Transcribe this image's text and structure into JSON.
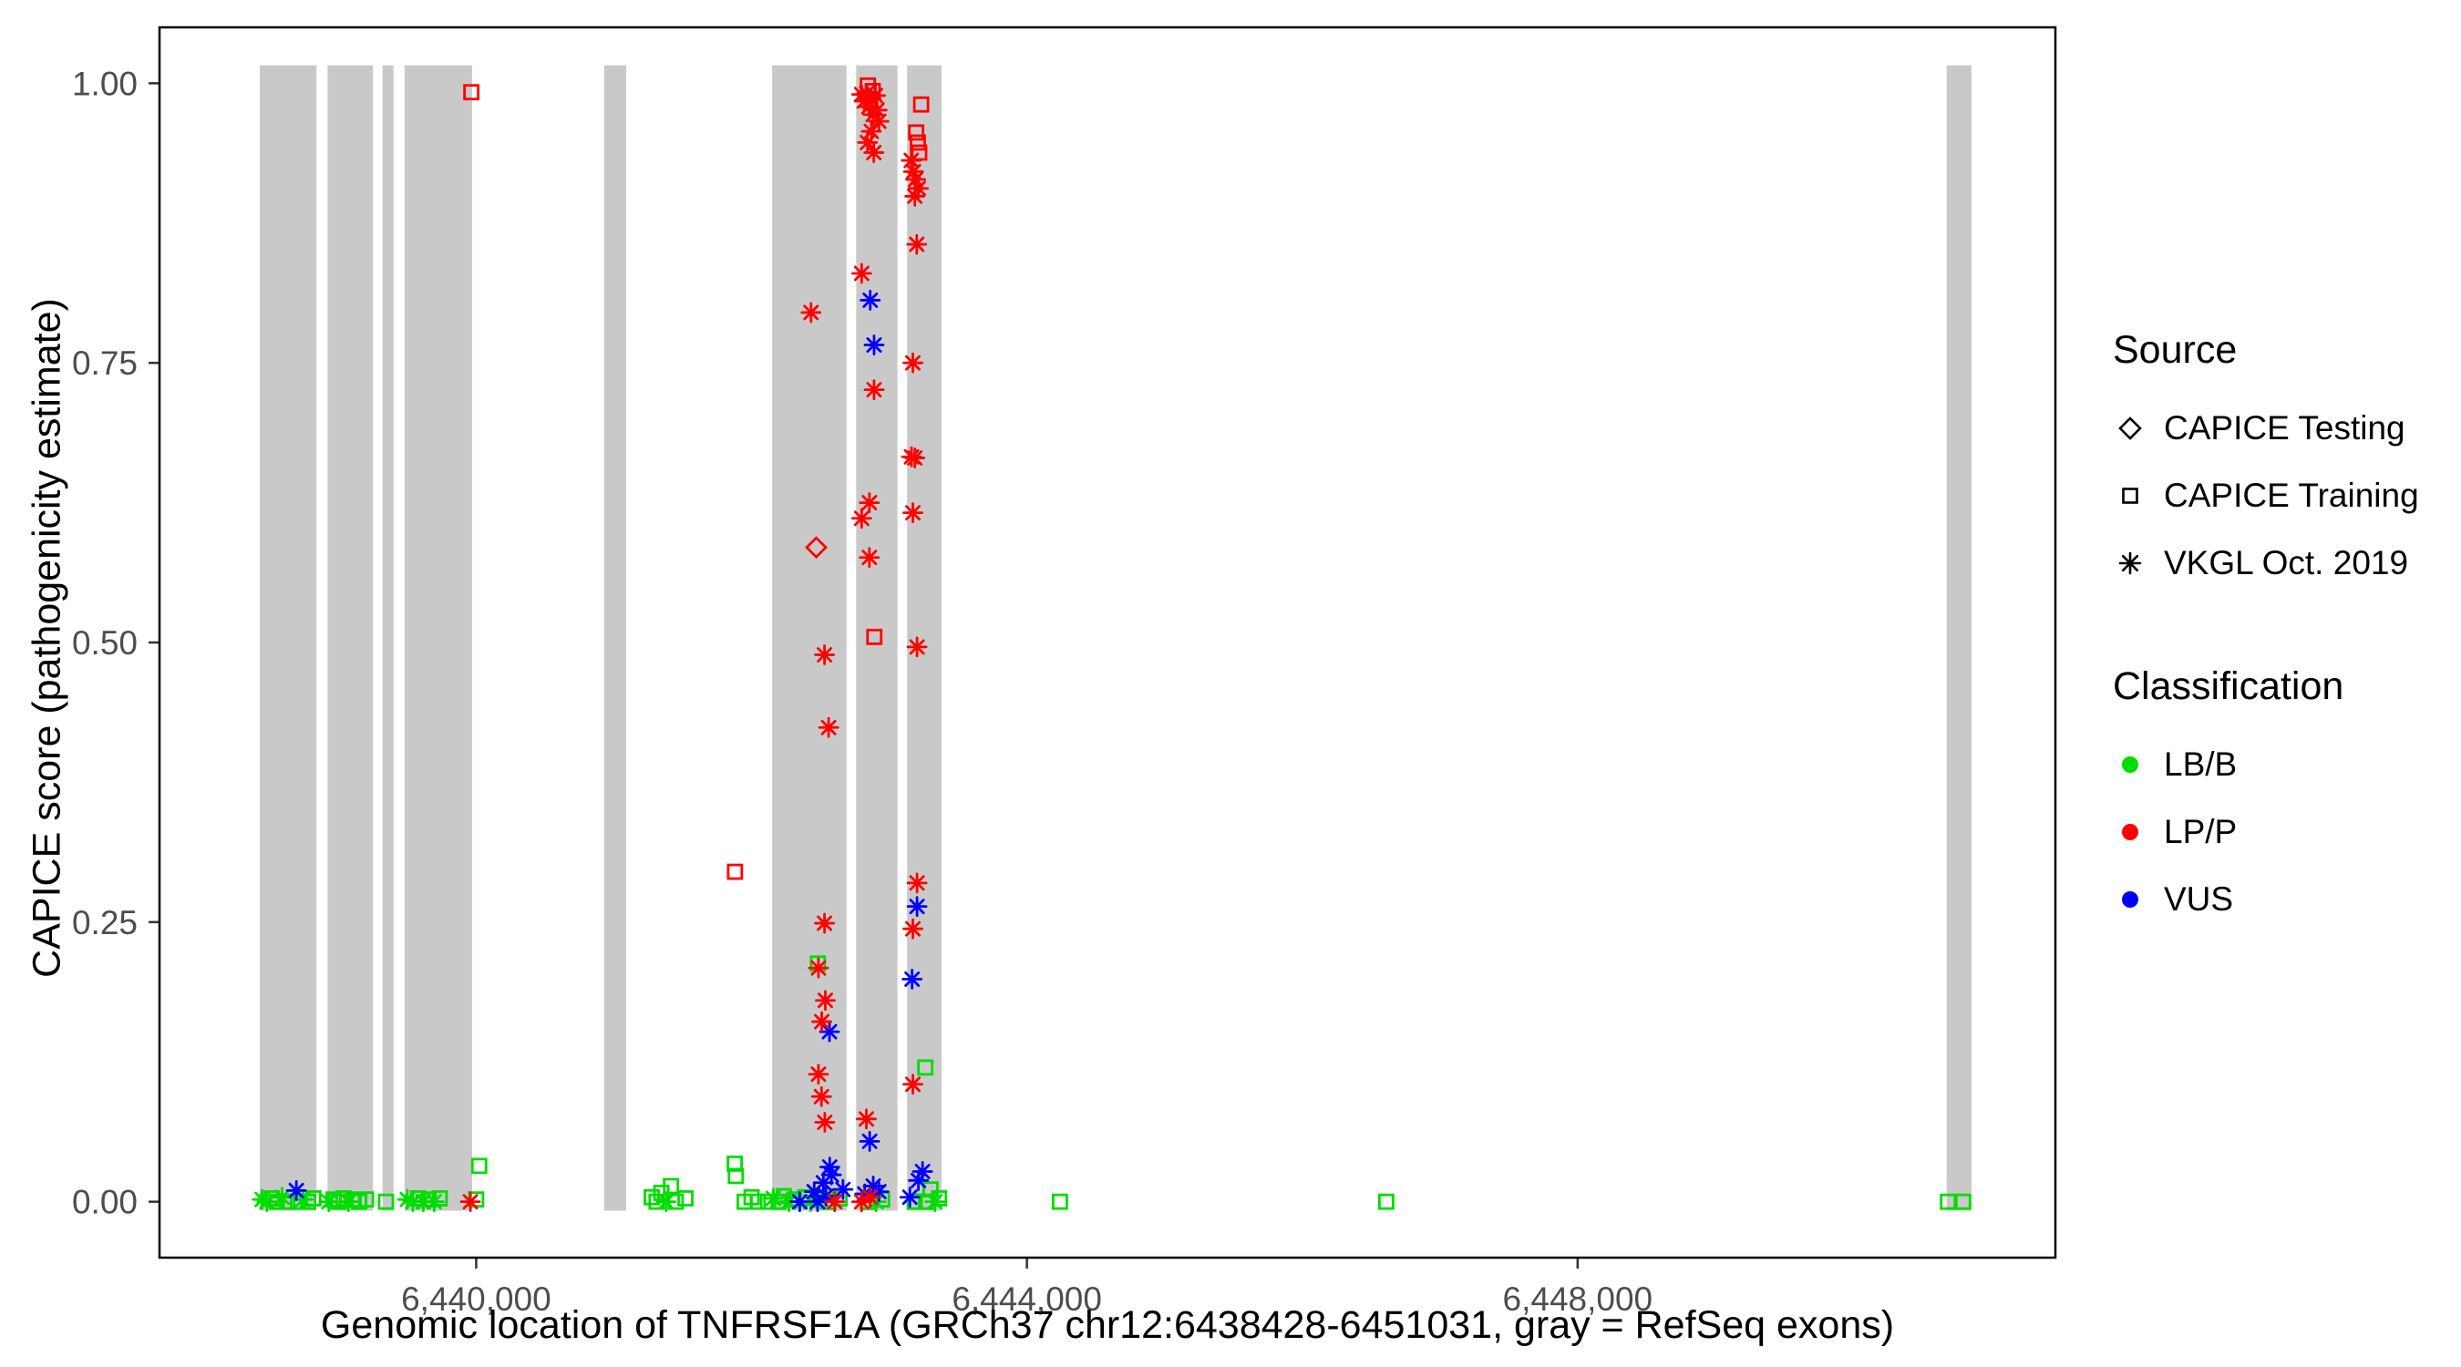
{
  "chart_data": {
    "type": "scatter",
    "title": "",
    "xlabel": "Genomic location of TNFRSF1A (GRCh37 chr12:6438428-6451031, gray = RefSeq exons)",
    "ylabel": "CAPICE score (pathogenicity estimate)",
    "xlim": [
      6437700,
      6451470
    ],
    "ylim": [
      -0.05,
      1.05
    ],
    "grid": false,
    "panel_border_color": "#000000",
    "tick_color": "#333333",
    "tick_label_color": "#4d4d4d",
    "x_ticks": [
      {
        "value": 6440000,
        "label": "6,440,000"
      },
      {
        "value": 6444000,
        "label": "6,444,000"
      },
      {
        "value": 6448000,
        "label": "6,448,000"
      }
    ],
    "y_ticks": [
      {
        "value": 0.0,
        "label": "0.00"
      },
      {
        "value": 0.25,
        "label": "0.25"
      },
      {
        "value": 0.5,
        "label": "0.50"
      },
      {
        "value": 0.75,
        "label": "0.75"
      },
      {
        "value": 1.0,
        "label": "1.00"
      }
    ],
    "exons": {
      "color": "#c9c9c9",
      "y_range": [
        -0.008,
        1.016
      ],
      "ranges": [
        [
          6438428,
          6438840
        ],
        [
          6438920,
          6439250
        ],
        [
          6439320,
          6439400
        ],
        [
          6439480,
          6439970
        ],
        [
          6440930,
          6441090
        ],
        [
          6442150,
          6442690
        ],
        [
          6442760,
          6443060
        ],
        [
          6443130,
          6443380
        ],
        [
          6450680,
          6450860
        ]
      ]
    },
    "classes": {
      "LB/B": "#00dd00",
      "LP/P": "#ff0000",
      "VUS": "#0000ff"
    },
    "legend": {
      "position": "right",
      "source": {
        "title": "Source",
        "items": [
          {
            "shape": "diamond",
            "label": "CAPICE Testing"
          },
          {
            "shape": "square",
            "label": "CAPICE Training"
          },
          {
            "shape": "asterisk",
            "label": "VKGL Oct. 2019"
          }
        ]
      },
      "classification": {
        "title": "Classification",
        "items": [
          {
            "color": "#00dd00",
            "label": "LB/B"
          },
          {
            "color": "#ff0000",
            "label": "LP/P"
          },
          {
            "color": "#0000ff",
            "label": "VUS"
          }
        ]
      }
    },
    "points": [
      [
        6439965,
        0.992,
        "LP/P",
        "square"
      ],
      [
        6442845,
        0.998,
        "LP/P",
        "square"
      ],
      [
        6442880,
        0.993,
        "LP/P",
        "square"
      ],
      [
        6442800,
        0.99,
        "LP/P",
        "asterisk"
      ],
      [
        6442818,
        0.984,
        "LP/P",
        "asterisk"
      ],
      [
        6442836,
        0.991,
        "LP/P",
        "asterisk"
      ],
      [
        6442852,
        0.979,
        "LP/P",
        "asterisk"
      ],
      [
        6442868,
        0.986,
        "LP/P",
        "asterisk"
      ],
      [
        6442884,
        0.972,
        "LP/P",
        "asterisk"
      ],
      [
        6442900,
        0.989,
        "LP/P",
        "asterisk"
      ],
      [
        6442912,
        0.976,
        "LP/P",
        "asterisk"
      ],
      [
        6442925,
        0.966,
        "LP/P",
        "asterisk"
      ],
      [
        6442870,
        0.957,
        "LP/P",
        "asterisk"
      ],
      [
        6442842,
        0.947,
        "LP/P",
        "asterisk"
      ],
      [
        6442888,
        0.938,
        "LP/P",
        "asterisk"
      ],
      [
        6443232,
        0.981,
        "LP/P",
        "square"
      ],
      [
        6443196,
        0.956,
        "LP/P",
        "square"
      ],
      [
        6443208,
        0.947,
        "LP/P",
        "square"
      ],
      [
        6443218,
        0.938,
        "LP/P",
        "square"
      ],
      [
        6443160,
        0.931,
        "LP/P",
        "asterisk"
      ],
      [
        6443176,
        0.921,
        "LP/P",
        "asterisk"
      ],
      [
        6443192,
        0.914,
        "LP/P",
        "asterisk"
      ],
      [
        6443212,
        0.906,
        "LP/P",
        "asterisk"
      ],
      [
        6443186,
        0.899,
        "LP/P",
        "asterisk"
      ],
      [
        6443200,
        0.856,
        "LP/P",
        "asterisk"
      ],
      [
        6442800,
        0.83,
        "LP/P",
        "asterisk"
      ],
      [
        6442862,
        0.806,
        "VUS",
        "asterisk"
      ],
      [
        6442432,
        0.795,
        "LP/P",
        "asterisk"
      ],
      [
        6442890,
        0.766,
        "VUS",
        "asterisk"
      ],
      [
        6443172,
        0.75,
        "LP/P",
        "asterisk"
      ],
      [
        6442890,
        0.726,
        "LP/P",
        "asterisk"
      ],
      [
        6443162,
        0.666,
        "LP/P",
        "asterisk"
      ],
      [
        6443186,
        0.665,
        "LP/P",
        "asterisk"
      ],
      [
        6442856,
        0.625,
        "LP/P",
        "asterisk"
      ],
      [
        6442800,
        0.611,
        "LP/P",
        "asterisk"
      ],
      [
        6443172,
        0.616,
        "LP/P",
        "asterisk"
      ],
      [
        6442470,
        0.585,
        "LP/P",
        "diamond"
      ],
      [
        6442856,
        0.576,
        "LP/P",
        "asterisk"
      ],
      [
        6442892,
        0.505,
        "LP/P",
        "square"
      ],
      [
        6442530,
        0.489,
        "LP/P",
        "asterisk"
      ],
      [
        6443202,
        0.496,
        "LP/P",
        "asterisk"
      ],
      [
        6442560,
        0.424,
        "LP/P",
        "asterisk"
      ],
      [
        6441880,
        0.295,
        "LP/P",
        "square"
      ],
      [
        6443202,
        0.285,
        "LP/P",
        "asterisk"
      ],
      [
        6443202,
        0.264,
        "VUS",
        "asterisk"
      ],
      [
        6442530,
        0.249,
        "LP/P",
        "asterisk"
      ],
      [
        6443172,
        0.244,
        "LP/P",
        "asterisk"
      ],
      [
        6442482,
        0.213,
        "LB/B",
        "square"
      ],
      [
        6442486,
        0.209,
        "LP/P",
        "asterisk"
      ],
      [
        6443166,
        0.199,
        "VUS",
        "asterisk"
      ],
      [
        6442536,
        0.18,
        "LP/P",
        "asterisk"
      ],
      [
        6442510,
        0.161,
        "LP/P",
        "asterisk"
      ],
      [
        6442566,
        0.152,
        "VUS",
        "asterisk"
      ],
      [
        6443262,
        0.12,
        "LB/B",
        "square"
      ],
      [
        6442486,
        0.114,
        "LP/P",
        "asterisk"
      ],
      [
        6443172,
        0.105,
        "LP/P",
        "asterisk"
      ],
      [
        6442508,
        0.094,
        "LP/P",
        "asterisk"
      ],
      [
        6442532,
        0.071,
        "LP/P",
        "asterisk"
      ],
      [
        6442834,
        0.074,
        "LP/P",
        "asterisk"
      ],
      [
        6442858,
        0.054,
        "VUS",
        "asterisk"
      ],
      [
        6441878,
        0.034,
        "LB/B",
        "square"
      ],
      [
        6441886,
        0.023,
        "LB/B",
        "square"
      ],
      [
        6440022,
        0.032,
        "LB/B",
        "square"
      ],
      [
        6442568,
        0.031,
        "VUS",
        "asterisk"
      ],
      [
        6443242,
        0.027,
        "VUS",
        "asterisk"
      ],
      [
        6438445,
        0.002,
        "LB/B",
        "asterisk"
      ],
      [
        6438480,
        0.0,
        "LB/B",
        "asterisk"
      ],
      [
        6438515,
        0.003,
        "LB/B",
        "square"
      ],
      [
        6438552,
        0.0,
        "LB/B",
        "square"
      ],
      [
        6438590,
        0.004,
        "LB/B",
        "asterisk"
      ],
      [
        6438628,
        0.0,
        "LB/B",
        "square"
      ],
      [
        6438694,
        0.01,
        "VUS",
        "asterisk"
      ],
      [
        6438705,
        0.0,
        "LB/B",
        "square"
      ],
      [
        6438742,
        0.002,
        "LB/B",
        "asterisk"
      ],
      [
        6438780,
        0.0,
        "LB/B",
        "square"
      ],
      [
        6438818,
        0.003,
        "LB/B",
        "square"
      ],
      [
        6438930,
        0.0,
        "LB/B",
        "asterisk"
      ],
      [
        6438964,
        0.002,
        "LB/B",
        "square"
      ],
      [
        6439000,
        0.0,
        "LB/B",
        "square"
      ],
      [
        6439036,
        0.003,
        "LB/B",
        "square"
      ],
      [
        6439072,
        0.0,
        "LB/B",
        "asterisk"
      ],
      [
        6439110,
        0.002,
        "LB/B",
        "square"
      ],
      [
        6439150,
        0.0,
        "LB/B",
        "square"
      ],
      [
        6439200,
        0.002,
        "LB/B",
        "square"
      ],
      [
        6439345,
        0.0,
        "LB/B",
        "square"
      ],
      [
        6439500,
        0.002,
        "LB/B",
        "asterisk"
      ],
      [
        6439540,
        0.0,
        "LB/B",
        "asterisk"
      ],
      [
        6439578,
        0.003,
        "LB/B",
        "square"
      ],
      [
        6439616,
        0.0,
        "LB/B",
        "asterisk"
      ],
      [
        6439655,
        0.002,
        "LB/B",
        "square"
      ],
      [
        6439695,
        0.0,
        "LB/B",
        "asterisk"
      ],
      [
        6439735,
        0.003,
        "LB/B",
        "square"
      ],
      [
        6439958,
        0.0,
        "LP/P",
        "asterisk"
      ],
      [
        6440000,
        0.002,
        "LB/B",
        "square"
      ],
      [
        6441275,
        0.004,
        "LB/B",
        "square"
      ],
      [
        6441310,
        0.0,
        "LB/B",
        "square"
      ],
      [
        6441345,
        0.008,
        "LB/B",
        "square"
      ],
      [
        6441380,
        0.0,
        "LB/B",
        "asterisk"
      ],
      [
        6441415,
        0.014,
        "LB/B",
        "square"
      ],
      [
        6441450,
        0.0,
        "LB/B",
        "square"
      ],
      [
        6441520,
        0.003,
        "LB/B",
        "square"
      ],
      [
        6441950,
        0.0,
        "LB/B",
        "square"
      ],
      [
        6442000,
        0.004,
        "LB/B",
        "square"
      ],
      [
        6442045,
        0.0,
        "LB/B",
        "square"
      ],
      [
        6442120,
        0.0,
        "LB/B",
        "square"
      ],
      [
        6442158,
        0.003,
        "LB/B",
        "asterisk"
      ],
      [
        6442196,
        0.0,
        "LB/B",
        "square"
      ],
      [
        6442234,
        0.005,
        "LB/B",
        "square"
      ],
      [
        6442272,
        0.0,
        "LB/B",
        "asterisk"
      ],
      [
        6442310,
        0.002,
        "LB/B",
        "square"
      ],
      [
        6442350,
        0.0,
        "VUS",
        "asterisk"
      ],
      [
        6442390,
        0.004,
        "LB/B",
        "square"
      ],
      [
        6442430,
        0.0,
        "LB/B",
        "asterisk"
      ],
      [
        6442455,
        0.009,
        "VUS",
        "asterisk"
      ],
      [
        6442480,
        0.0,
        "VUS",
        "asterisk"
      ],
      [
        6442505,
        0.002,
        "LB/B",
        "asterisk"
      ],
      [
        6442522,
        0.017,
        "VUS",
        "asterisk"
      ],
      [
        6442540,
        0.005,
        "VUS",
        "asterisk"
      ],
      [
        6442558,
        0.0,
        "LB/B",
        "square"
      ],
      [
        6442580,
        0.024,
        "VUS",
        "asterisk"
      ],
      [
        6442604,
        0.0,
        "LP/P",
        "asterisk"
      ],
      [
        6442640,
        0.003,
        "LB/B",
        "square"
      ],
      [
        6442664,
        0.011,
        "VUS",
        "asterisk"
      ],
      [
        6442800,
        0.0,
        "LP/P",
        "asterisk"
      ],
      [
        6442822,
        0.007,
        "VUS",
        "asterisk"
      ],
      [
        6442845,
        0.0,
        "LB/B",
        "square"
      ],
      [
        6442862,
        0.004,
        "LP/P",
        "asterisk"
      ],
      [
        6442884,
        0.014,
        "VUS",
        "asterisk"
      ],
      [
        6442905,
        0.0,
        "LB/B",
        "asterisk"
      ],
      [
        6442925,
        0.009,
        "VUS",
        "asterisk"
      ],
      [
        6442948,
        0.002,
        "LB/B",
        "square"
      ],
      [
        6443150,
        0.004,
        "VUS",
        "asterisk"
      ],
      [
        6443185,
        0.0,
        "LB/B",
        "square"
      ],
      [
        6443212,
        0.019,
        "VUS",
        "asterisk"
      ],
      [
        6443268,
        0.0,
        "LB/B",
        "square"
      ],
      [
        6443300,
        0.011,
        "LB/B",
        "square"
      ],
      [
        6443332,
        0.0,
        "LB/B",
        "asterisk"
      ],
      [
        6443362,
        0.003,
        "LB/B",
        "square"
      ],
      [
        6444240,
        0.0,
        "LB/B",
        "square"
      ],
      [
        6446610,
        0.0,
        "LB/B",
        "square"
      ],
      [
        6450690,
        0.0,
        "LB/B",
        "square"
      ],
      [
        6450800,
        0.0,
        "LB/B",
        "square"
      ]
    ]
  }
}
